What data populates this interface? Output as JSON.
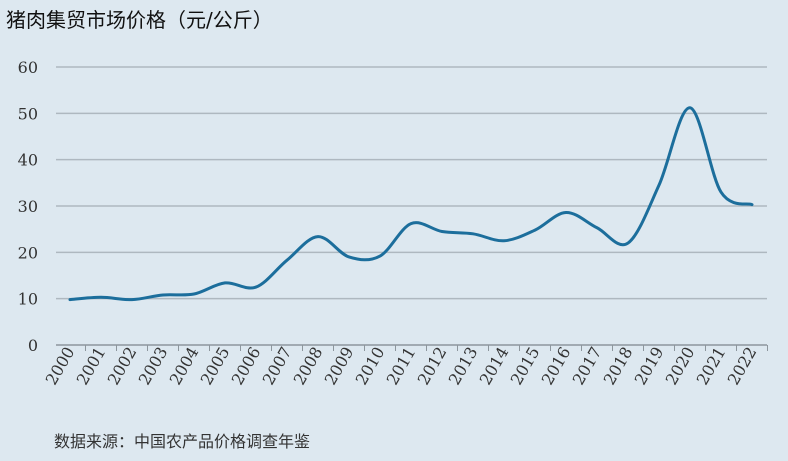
{
  "chart_data": {
    "type": "line",
    "title": "猪肉集贸市场价格（元/公斤）",
    "source": "数据来源：中国农产品价格调查年鉴",
    "xlabel": "",
    "ylabel": "",
    "ylim": [
      0,
      60
    ],
    "yticks": [
      0,
      10,
      20,
      30,
      40,
      50,
      60
    ],
    "grid": true,
    "colors": {
      "line": "#1c6e9c",
      "grid": "#aeb8c0",
      "axis": "#8d969d",
      "background": "#dde8f0"
    },
    "categories": [
      "2000",
      "2001",
      "2002",
      "2003",
      "2004",
      "2005",
      "2006",
      "2007",
      "2008",
      "2009",
      "2010",
      "2011",
      "2012",
      "2013",
      "2014",
      "2015",
      "2016",
      "2017",
      "2018",
      "2019",
      "2020",
      "2021",
      "2022"
    ],
    "series": [
      {
        "values": [
          9.8,
          10.3,
          9.8,
          10.8,
          11.0,
          13.4,
          12.5,
          18.3,
          23.4,
          19.0,
          19.2,
          26.2,
          24.5,
          24.0,
          22.5,
          24.8,
          28.6,
          25.3,
          22.0,
          34.5,
          51.2,
          33.0,
          30.3
        ]
      }
    ]
  }
}
